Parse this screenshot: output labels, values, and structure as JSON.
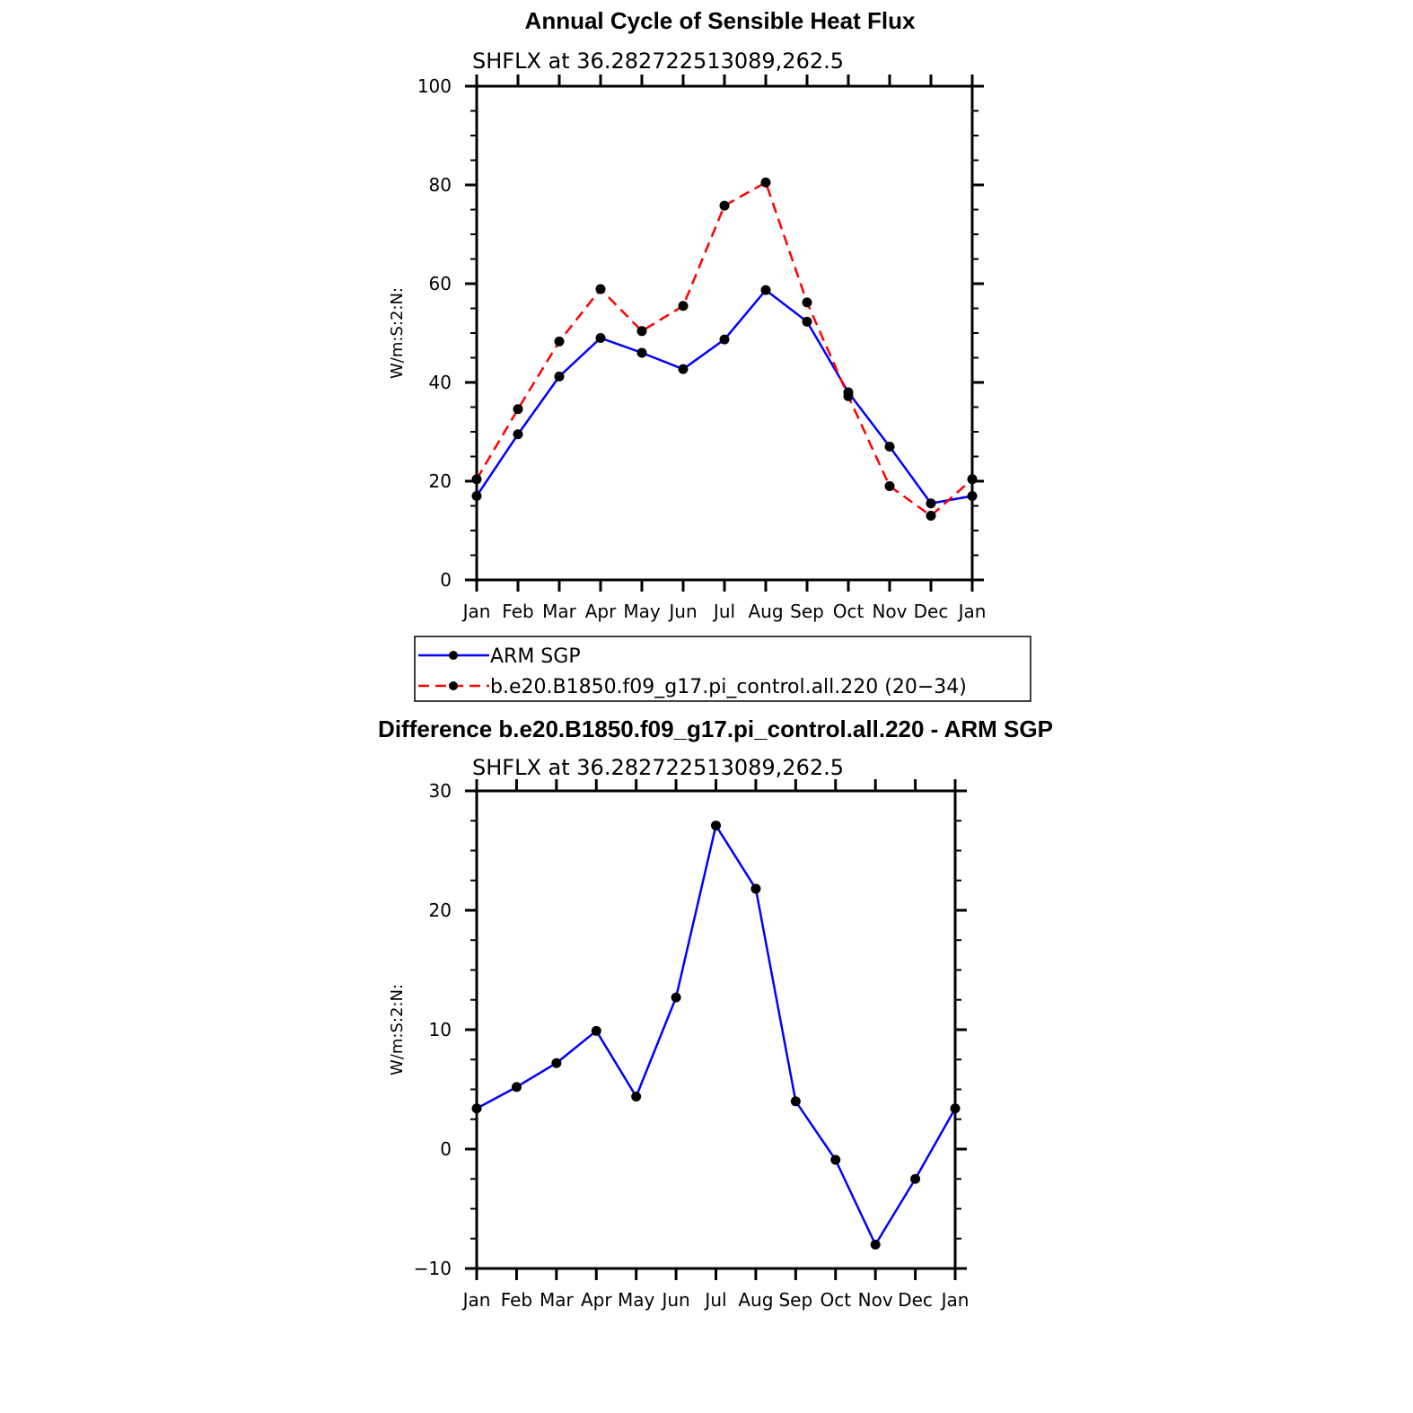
{
  "chart_data": [
    {
      "type": "line",
      "title": "Annual Cycle of Sensible Heat Flux",
      "subtitle": "SHFLX  at  36.282722513089,262.5",
      "ylabel": "W/m:S:2:N:",
      "xlabel": "",
      "ylim": [
        0,
        100
      ],
      "yticks": [
        "0",
        "20",
        "40",
        "60",
        "80",
        "100"
      ],
      "categories": [
        "Jan",
        "Feb",
        "Mar",
        "Apr",
        "May",
        "Jun",
        "Jul",
        "Aug",
        "Sep",
        "Oct",
        "Nov",
        "Dec",
        "Jan"
      ],
      "series": [
        {
          "name": "ARM SGP",
          "color": "#0000ff",
          "dash": "solid",
          "values": [
            17.0,
            29.5,
            41.2,
            49.0,
            46.0,
            42.7,
            48.7,
            58.7,
            52.3,
            38.0,
            27.0,
            15.5,
            17.0
          ]
        },
        {
          "name": "b.e20.B1850.f09_g17.pi_control.all.220 (20−34)",
          "color": "#ff0000",
          "dash": "dashed",
          "values": [
            20.4,
            34.6,
            48.3,
            58.9,
            50.4,
            55.5,
            75.8,
            80.5,
            56.2,
            37.2,
            19.0,
            13.0,
            20.4
          ]
        }
      ],
      "legend": "below"
    },
    {
      "type": "line",
      "title": "Difference b.e20.B1850.f09_g17.pi_control.all.220 - ARM SGP",
      "subtitle": "SHFLX  at  36.282722513089,262.5",
      "ylabel": "W/m:S:2:N:",
      "xlabel": "",
      "ylim": [
        -10,
        30
      ],
      "yticks": [
        "−10",
        "0",
        "10",
        "20",
        "30"
      ],
      "categories": [
        "Jan",
        "Feb",
        "Mar",
        "Apr",
        "May",
        "Jun",
        "Jul",
        "Aug",
        "Sep",
        "Oct",
        "Nov",
        "Dec",
        "Jan"
      ],
      "series": [
        {
          "name": "Difference",
          "color": "#0000ff",
          "dash": "solid",
          "values": [
            3.4,
            5.2,
            7.2,
            9.9,
            4.4,
            12.7,
            27.1,
            21.8,
            4.0,
            -0.9,
            -8.0,
            -2.5,
            3.4
          ]
        }
      ]
    }
  ]
}
